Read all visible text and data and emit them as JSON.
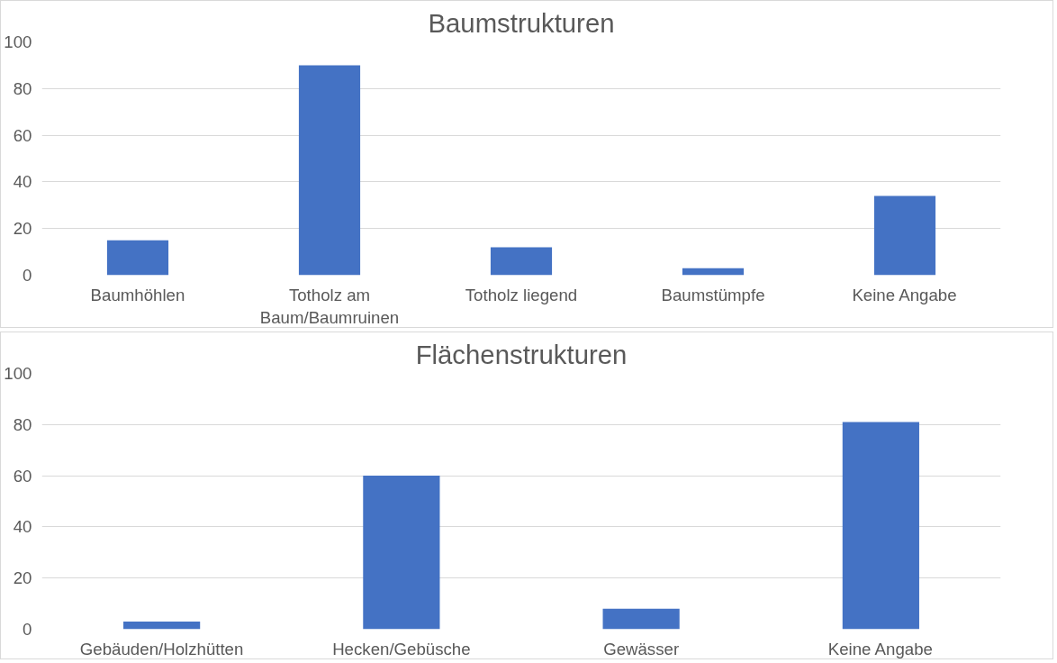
{
  "chart_data": [
    {
      "type": "bar",
      "title": "Baumstrukturen",
      "categories": [
        "Baumhöhlen",
        "Totholz am Baum/Baumruinen",
        "Totholz liegend",
        "Baumstümpfe",
        "Keine Angabe"
      ],
      "values": [
        15,
        90,
        12,
        3,
        34
      ],
      "color": "#4472c4",
      "ylim": [
        0,
        100
      ],
      "yticks": [
        0,
        20,
        40,
        60,
        80,
        100
      ],
      "grid": "y"
    },
    {
      "type": "bar",
      "title": "Flächenstrukturen",
      "categories": [
        "Gebäuden/Holzhütten",
        "Hecken/Gebüsche",
        "Gewässer",
        "Keine Angabe"
      ],
      "values": [
        3,
        60,
        8,
        81
      ],
      "color": "#4472c4",
      "ylim": [
        0,
        100
      ],
      "yticks": [
        0,
        20,
        40,
        60,
        80,
        100
      ],
      "grid": "y"
    }
  ]
}
